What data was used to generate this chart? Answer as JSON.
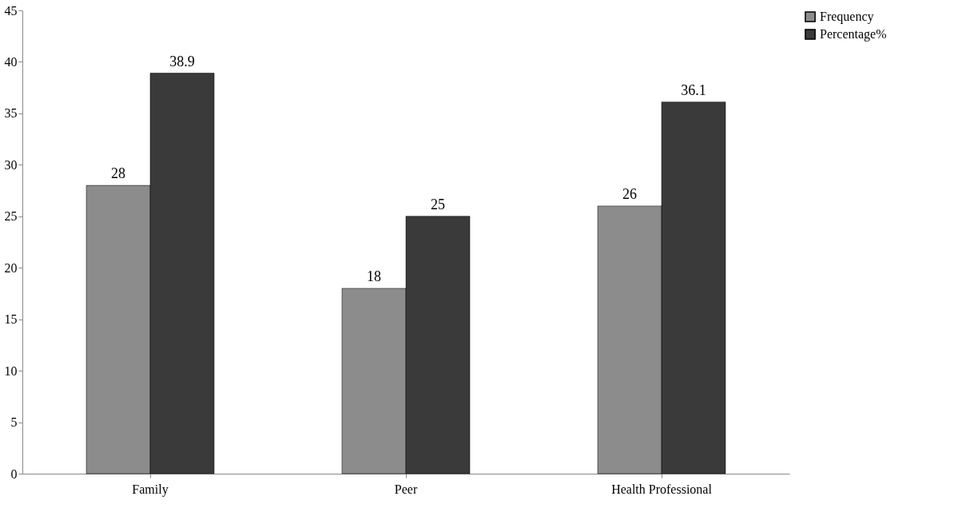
{
  "chart_data": {
    "type": "bar",
    "categories": [
      "Family",
      "Peer",
      "Health Professional"
    ],
    "series": [
      {
        "name": "Frequency",
        "color": "#8c8c8c",
        "values": [
          28,
          18,
          26
        ]
      },
      {
        "name": "Percentage%",
        "color": "#3a3a3a",
        "values": [
          38.9,
          25,
          36.1
        ]
      }
    ],
    "ylim": [
      0,
      45
    ],
    "yticks": [
      0,
      5,
      10,
      15,
      20,
      25,
      30,
      35,
      40,
      45
    ],
    "grid": false,
    "legend": "right",
    "data_labels": true
  }
}
